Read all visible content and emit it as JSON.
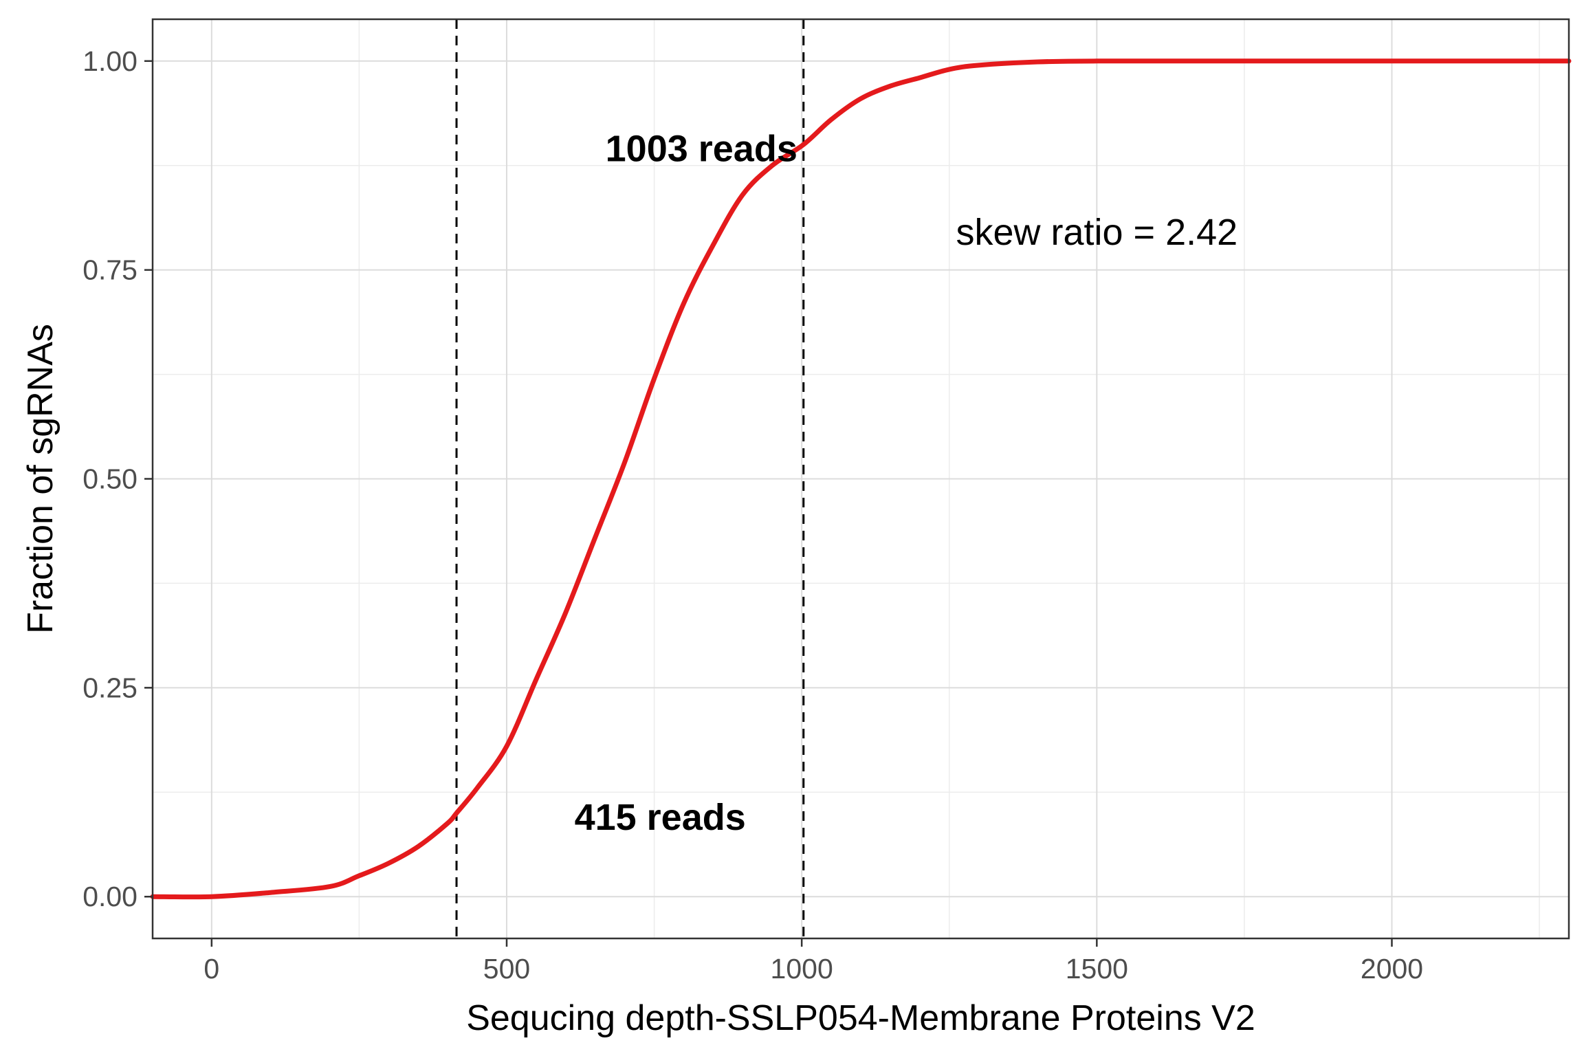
{
  "chart_data": {
    "type": "line",
    "xlabel": "Sequcing depth-SSLP054-Membrane Proteins V2",
    "ylabel": "Fraction of sgRNAs",
    "xlim": [
      -100,
      2300
    ],
    "ylim": [
      -0.05,
      1.05
    ],
    "x_ticks": [
      0,
      500,
      1000,
      1500,
      2000
    ],
    "y_ticks": [
      0.0,
      0.25,
      0.5,
      0.75,
      1.0
    ],
    "x_tick_labels": [
      "0",
      "500",
      "1000",
      "1500",
      "2000"
    ],
    "y_tick_labels": [
      "0.00",
      "0.25",
      "0.50",
      "0.75",
      "1.00"
    ],
    "grid": true,
    "series": [
      {
        "color": "#e41a1c",
        "x": [
          -100,
          0,
          100,
          200,
          250,
          300,
          350,
          400,
          415,
          450,
          500,
          550,
          600,
          650,
          700,
          750,
          800,
          850,
          900,
          950,
          1003,
          1050,
          1100,
          1150,
          1200,
          1250,
          1300,
          1400,
          1500,
          1750,
          2000,
          2300
        ],
        "y": [
          0.0,
          0.0,
          0.005,
          0.012,
          0.025,
          0.04,
          0.06,
          0.088,
          0.1,
          0.13,
          0.18,
          0.26,
          0.34,
          0.43,
          0.52,
          0.62,
          0.71,
          0.78,
          0.84,
          0.875,
          0.9,
          0.93,
          0.955,
          0.97,
          0.98,
          0.99,
          0.995,
          0.999,
          1.0,
          1.0,
          1.0,
          1.0
        ]
      }
    ],
    "vlines": [
      415,
      1003
    ],
    "annotations": [
      {
        "text": "1003 reads",
        "x": 830,
        "y": 0.895,
        "bold": true
      },
      {
        "text": "skew ratio = 2.42",
        "x": 1500,
        "y": 0.795,
        "bold": false
      },
      {
        "text": "415 reads",
        "x": 760,
        "y": 0.095,
        "bold": true
      }
    ]
  }
}
